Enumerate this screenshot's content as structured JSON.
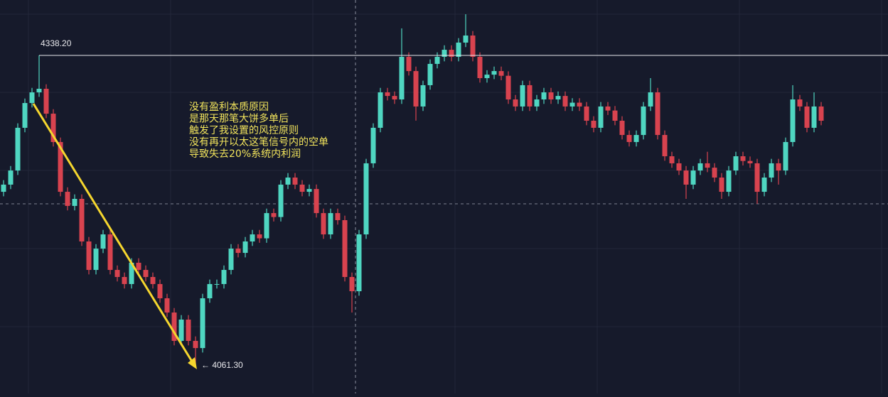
{
  "chart_data": {
    "type": "candlestick",
    "up_color": "#4fd6c1",
    "down_color": "#d8434f",
    "grid": true,
    "ylim": [
      4036.6,
      4387.6
    ],
    "candles": [
      [
        4216.5,
        4226.9,
        4212.5,
        4222.9
      ],
      [
        4222.9,
        4239.5,
        4218.9,
        4235.5
      ],
      [
        4235.5,
        4277.6,
        4231.5,
        4273.6
      ],
      [
        4273.6,
        4299.7,
        4269.6,
        4295.7
      ],
      [
        4295.7,
        4309.2,
        4291.7,
        4305.2
      ],
      [
        4305.2,
        4338.2,
        4301.2,
        4308.4
      ],
      [
        4308.4,
        4312.4,
        4282.2,
        4286.2
      ],
      [
        4286.2,
        4290.2,
        4256.9,
        4260.9
      ],
      [
        4260.9,
        4264.9,
        4212.5,
        4216.5
      ],
      [
        4216.5,
        4220.5,
        4199.9,
        4203.9
      ],
      [
        4203.9,
        4214.2,
        4199.9,
        4210.2
      ],
      [
        4210.2,
        4214.2,
        4168.2,
        4172.2
      ],
      [
        4172.2,
        4176.2,
        4142.8,
        4146.8
      ],
      [
        4146.8,
        4169.8,
        4142.8,
        4165.8
      ],
      [
        4165.8,
        4182.5,
        4161.8,
        4178.5
      ],
      [
        4178.5,
        4182.5,
        4142.8,
        4146.8
      ],
      [
        4146.8,
        4150.8,
        4136.5,
        4140.5
      ],
      [
        4140.5,
        4144.5,
        4130.2,
        4134.2
      ],
      [
        4134.2,
        4157.2,
        4130.2,
        4153.2
      ],
      [
        4153.2,
        4157.2,
        4142.8,
        4146.8
      ],
      [
        4146.8,
        4150.8,
        4136.5,
        4140.5
      ],
      [
        4140.5,
        4144.5,
        4130.2,
        4134.2
      ],
      [
        4134.2,
        4138.2,
        4117.5,
        4121.5
      ],
      [
        4121.5,
        4125.5,
        4104.8,
        4108.8
      ],
      [
        4108.8,
        4112.8,
        4079.5,
        4083.5
      ],
      [
        4083.5,
        4106.5,
        4079.5,
        4102.5
      ],
      [
        4102.5,
        4106.5,
        4079.5,
        4083.5
      ],
      [
        4083.5,
        4087.5,
        4061.3,
        4077.1
      ],
      [
        4077.1,
        4125.5,
        4073.1,
        4121.5
      ],
      [
        4121.5,
        4138.2,
        4117.5,
        4134.2
      ],
      [
        4134.2,
        4138.2,
        4130.2,
        4134.2
      ],
      [
        4134.2,
        4150.8,
        4130.2,
        4146.8
      ],
      [
        4146.8,
        4169.8,
        4142.8,
        4165.8
      ],
      [
        4165.8,
        4169.8,
        4158.0,
        4162.0
      ],
      [
        4162.0,
        4176.2,
        4158.0,
        4172.2
      ],
      [
        4172.2,
        4182.5,
        4168.2,
        4178.5
      ],
      [
        4178.5,
        4182.5,
        4171.0,
        4175.0
      ],
      [
        4175.0,
        4201.5,
        4171.0,
        4197.5
      ],
      [
        4197.5,
        4201.5,
        4190.0,
        4194.0
      ],
      [
        4194.0,
        4226.9,
        4190.0,
        4222.9
      ],
      [
        4222.9,
        4233.2,
        4218.9,
        4229.2
      ],
      [
        4229.2,
        4233.2,
        4218.9,
        4222.9
      ],
      [
        4222.9,
        4226.9,
        4212.5,
        4216.5
      ],
      [
        4216.5,
        4223.0,
        4212.5,
        4219.0
      ],
      [
        4219.0,
        4223.0,
        4193.5,
        4197.5
      ],
      [
        4197.5,
        4201.5,
        4174.5,
        4178.5
      ],
      [
        4178.5,
        4201.5,
        4174.5,
        4197.5
      ],
      [
        4197.5,
        4201.5,
        4187.2,
        4191.2
      ],
      [
        4191.2,
        4195.2,
        4136.5,
        4140.5
      ],
      [
        4140.5,
        4144.5,
        4108.8,
        4127.8
      ],
      [
        4127.8,
        4182.5,
        4123.8,
        4178.5
      ],
      [
        4178.5,
        4245.9,
        4174.5,
        4241.9
      ],
      [
        4241.9,
        4277.6,
        4237.9,
        4273.6
      ],
      [
        4273.6,
        4309.2,
        4269.6,
        4305.2
      ],
      [
        4305.2,
        4309.2,
        4298.0,
        4302.0
      ],
      [
        4302.0,
        4306.0,
        4294.9,
        4298.9
      ],
      [
        4298.9,
        4362.3,
        4294.9,
        4336.9
      ],
      [
        4336.9,
        4340.9,
        4320.2,
        4324.2
      ],
      [
        4324.2,
        4328.2,
        4280.0,
        4292.6
      ],
      [
        4292.6,
        4315.6,
        4288.6,
        4311.6
      ],
      [
        4311.6,
        4334.6,
        4307.6,
        4330.6
      ],
      [
        4330.6,
        4340.9,
        4326.6,
        4336.9
      ],
      [
        4336.9,
        4347.2,
        4332.9,
        4343.2
      ],
      [
        4343.2,
        4347.2,
        4332.9,
        4336.9
      ],
      [
        4336.9,
        4353.6,
        4332.9,
        4349.6
      ],
      [
        4349.6,
        4374.9,
        4345.6,
        4355.9
      ],
      [
        4355.9,
        4359.9,
        4332.9,
        4336.9
      ],
      [
        4336.9,
        4340.9,
        4313.9,
        4317.9
      ],
      [
        4317.9,
        4325.0,
        4313.9,
        4321.0
      ],
      [
        4321.0,
        4328.2,
        4317.0,
        4324.2
      ],
      [
        4324.2,
        4328.2,
        4316.0,
        4320.0
      ],
      [
        4320.0,
        4324.0,
        4294.9,
        4298.9
      ],
      [
        4298.9,
        4302.9,
        4288.6,
        4292.6
      ],
      [
        4292.6,
        4315.6,
        4288.6,
        4311.6
      ],
      [
        4311.6,
        4315.6,
        4288.6,
        4292.6
      ],
      [
        4292.6,
        4302.9,
        4288.6,
        4298.9
      ],
      [
        4298.9,
        4309.2,
        4294.9,
        4305.2
      ],
      [
        4305.2,
        4309.2,
        4294.9,
        4298.9
      ],
      [
        4298.9,
        4306.0,
        4294.9,
        4302.0
      ],
      [
        4302.0,
        4306.0,
        4288.6,
        4292.6
      ],
      [
        4292.6,
        4300.0,
        4288.6,
        4296.0
      ],
      [
        4296.0,
        4300.0,
        4288.6,
        4292.6
      ],
      [
        4292.6,
        4296.6,
        4275.9,
        4279.9
      ],
      [
        4279.9,
        4283.9,
        4269.6,
        4273.6
      ],
      [
        4273.6,
        4296.6,
        4269.6,
        4292.6
      ],
      [
        4292.6,
        4296.6,
        4285.0,
        4289.0
      ],
      [
        4289.0,
        4293.0,
        4275.9,
        4279.9
      ],
      [
        4279.9,
        4283.9,
        4263.2,
        4267.2
      ],
      [
        4267.2,
        4271.2,
        4256.9,
        4260.9
      ],
      [
        4260.9,
        4271.2,
        4256.9,
        4267.2
      ],
      [
        4267.2,
        4296.6,
        4263.2,
        4292.6
      ],
      [
        4292.6,
        4317.9,
        4288.6,
        4305.2
      ],
      [
        4305.2,
        4309.2,
        4263.2,
        4267.2
      ],
      [
        4267.2,
        4271.2,
        4244.2,
        4248.2
      ],
      [
        4248.2,
        4252.2,
        4237.9,
        4241.9
      ],
      [
        4241.9,
        4245.9,
        4231.5,
        4235.5
      ],
      [
        4235.5,
        4239.5,
        4210.2,
        4222.9
      ],
      [
        4222.9,
        4239.5,
        4218.9,
        4235.5
      ],
      [
        4235.5,
        4245.9,
        4231.5,
        4241.9
      ],
      [
        4241.9,
        4252.2,
        4234.0,
        4238.0
      ],
      [
        4238.0,
        4242.0,
        4225.2,
        4229.2
      ],
      [
        4229.2,
        4233.2,
        4210.2,
        4216.5
      ],
      [
        4216.5,
        4239.5,
        4212.5,
        4235.5
      ],
      [
        4235.5,
        4252.2,
        4231.5,
        4248.2
      ],
      [
        4248.2,
        4252.2,
        4240.0,
        4244.0
      ],
      [
        4244.0,
        4248.0,
        4237.9,
        4241.9
      ],
      [
        4241.9,
        4245.9,
        4205.8,
        4216.5
      ],
      [
        4216.5,
        4233.2,
        4212.5,
        4229.2
      ],
      [
        4229.2,
        4245.9,
        4225.2,
        4241.9
      ],
      [
        4241.9,
        4245.9,
        4222.9,
        4235.5
      ],
      [
        4235.5,
        4264.9,
        4231.5,
        4260.9
      ],
      [
        4260.9,
        4311.6,
        4256.9,
        4298.9
      ],
      [
        4298.9,
        4302.9,
        4288.6,
        4292.6
      ],
      [
        4292.6,
        4296.6,
        4269.6,
        4273.6
      ],
      [
        4273.6,
        4305.2,
        4269.6,
        4292.6
      ],
      [
        4292.6,
        4296.6,
        4275.9,
        4279.9
      ]
    ],
    "high_line": {
      "value": 4338.2,
      "label": "4338.20"
    },
    "low_marker": {
      "value": 4061.3,
      "label": "← 4061.30"
    },
    "level_line": {
      "value": 4205.8
    },
    "annotation": [
      "没有盈利本质原因",
      "是那天那笔大饼多单后",
      "触发了我设置的风控原则",
      "没有再开以太这笔信号内的空单",
      "导致失去20%系统内利润"
    ]
  }
}
